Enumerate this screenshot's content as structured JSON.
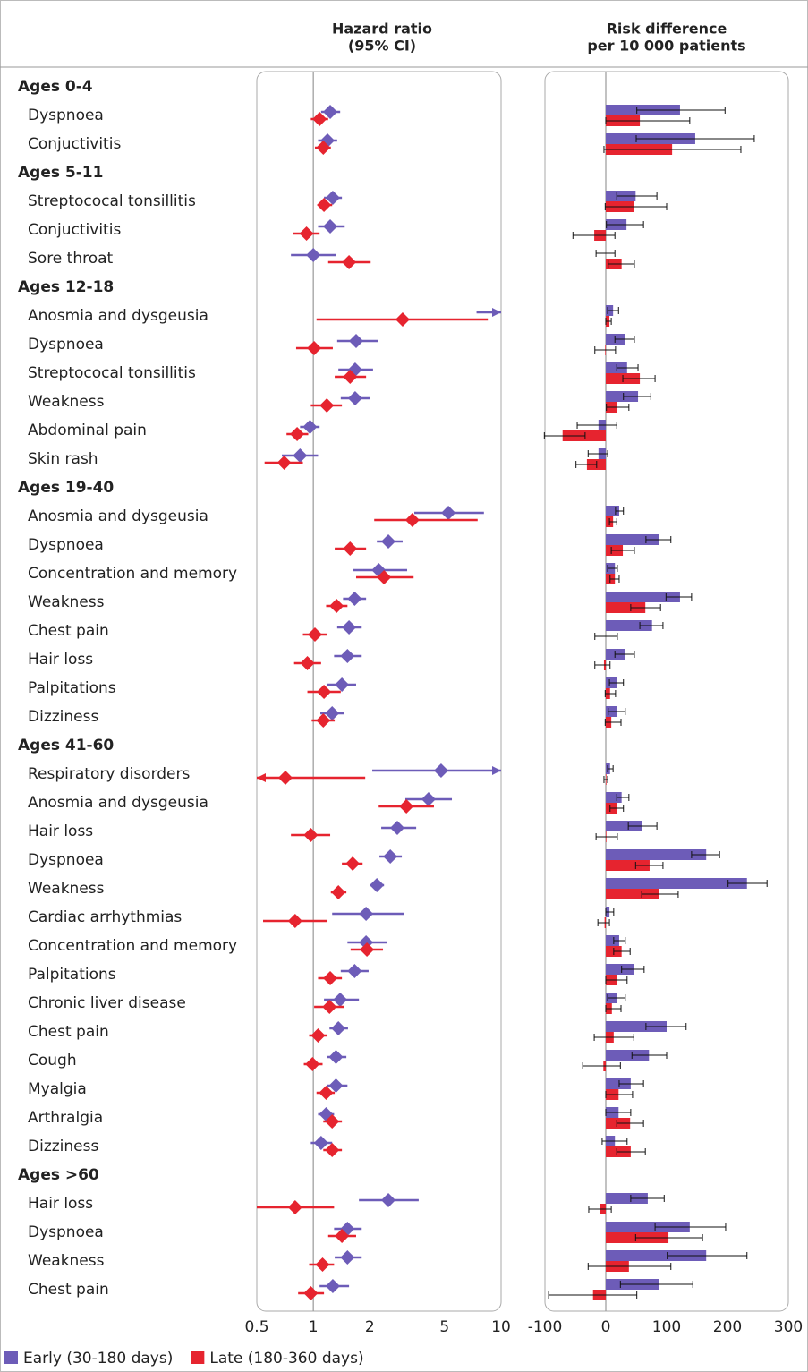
{
  "hazard_ratio": {
    "title": [
      "Hazard ratio",
      "(95% CI)"
    ],
    "scale": "log",
    "xlim": [
      0.5,
      10
    ],
    "xticks": [
      0.5,
      1,
      2,
      5,
      10
    ],
    "reference": 1
  },
  "risk_difference": {
    "title": [
      "Risk difference",
      "per 10 000 patients"
    ],
    "xlim": [
      -100,
      300
    ],
    "xticks": [
      -100,
      0,
      100,
      200,
      300
    ],
    "reference": 0
  },
  "series": [
    {
      "name": "Early (30-180 days)",
      "color": "#6d5cb8"
    },
    {
      "name": "Late (180-360 days)",
      "color": "#e6242f"
    }
  ],
  "groups": [
    {
      "label": "Ages 0-4",
      "rows": [
        {
          "label": "Dyspnoea",
          "hr": [
            [
              1.23,
              1.1,
              1.39
            ],
            [
              1.08,
              0.97,
              1.2
            ]
          ],
          "rd": [
            [
              122,
              51,
              196
            ],
            [
              56,
              0,
              138
            ]
          ]
        },
        {
          "label": "Conjuctivitis",
          "hr": [
            [
              1.19,
              1.06,
              1.34
            ],
            [
              1.13,
              1.02,
              1.24
            ]
          ],
          "rd": [
            [
              147,
              50,
              244
            ],
            [
              109,
              -3,
              222
            ]
          ]
        }
      ]
    },
    {
      "label": "Ages 5-11",
      "rows": [
        {
          "label": "Streptococal tonsillitis",
          "hr": [
            [
              1.27,
              1.14,
              1.42
            ],
            [
              1.14,
              1.06,
              1.26
            ]
          ],
          "rd": [
            [
              49,
              18,
              84
            ],
            [
              47,
              -1,
              100
            ]
          ]
        },
        {
          "label": "Conjuctivitis",
          "hr": [
            [
              1.23,
              1.06,
              1.47
            ],
            [
              0.92,
              0.78,
              1.08
            ]
          ],
          "rd": [
            [
              34,
              1,
              62
            ],
            [
              -19,
              -54,
              15
            ]
          ]
        },
        {
          "label": "Sore throat",
          "hr": [
            [
              1.0,
              0.76,
              1.32
            ],
            [
              1.55,
              1.2,
              2.02
            ]
          ],
          "rd": [
            [
              0,
              -16,
              15
            ],
            [
              26,
              4,
              47
            ]
          ]
        }
      ]
    },
    {
      "label": "Ages 12-18",
      "rows": [
        {
          "label": "Anosmia and dysgeusia",
          "hr": [
            [
              12,
              7.4,
              20
            ],
            [
              2.99,
              1.04,
              8.5
            ]
          ],
          "rd": [
            [
              12,
              3,
              21
            ],
            [
              6,
              0,
              9
            ]
          ]
        },
        {
          "label": "Dyspnoea",
          "hr": [
            [
              1.69,
              1.34,
              2.2
            ],
            [
              1.01,
              0.81,
              1.27
            ]
          ],
          "rd": [
            [
              32,
              15,
              47
            ],
            [
              -1,
              -18,
              16
            ]
          ]
        },
        {
          "label": "Streptococal tonsillitis",
          "hr": [
            [
              1.67,
              1.36,
              2.08
            ],
            [
              1.57,
              1.3,
              1.91
            ]
          ],
          "rd": [
            [
              35,
              18,
              53
            ],
            [
              56,
              28,
              81
            ]
          ]
        },
        {
          "label": "Weakness",
          "hr": [
            [
              1.67,
              1.4,
              2.0
            ],
            [
              1.18,
              0.97,
              1.42
            ]
          ],
          "rd": [
            [
              53,
              29,
              74
            ],
            [
              18,
              1,
              38
            ]
          ]
        },
        {
          "label": "Abdominal pain",
          "hr": [
            [
              0.96,
              0.85,
              1.08
            ],
            [
              0.82,
              0.72,
              0.94
            ]
          ],
          "rd": [
            [
              -12,
              -47,
              18
            ],
            [
              -71,
              -101,
              -34
            ]
          ]
        },
        {
          "label": "Skin rash",
          "hr": [
            [
              0.85,
              0.68,
              1.06
            ],
            [
              0.7,
              0.55,
              0.88
            ]
          ],
          "rd": [
            [
              -12,
              -29,
              3
            ],
            [
              -31,
              -49,
              -15
            ]
          ]
        }
      ]
    },
    {
      "label": "Ages 19-40",
      "rows": [
        {
          "label": "Anosmia and dysgeusia",
          "hr": [
            [
              5.24,
              3.45,
              8.1
            ],
            [
              3.37,
              2.11,
              7.5
            ]
          ],
          "rd": [
            [
              22,
              16,
              29
            ],
            [
              12,
              6,
              18
            ]
          ]
        },
        {
          "label": "Dyspnoea",
          "hr": [
            [
              2.51,
              2.18,
              2.99
            ],
            [
              1.57,
              1.3,
              1.91
            ]
          ],
          "rd": [
            [
              87,
              66,
              107
            ],
            [
              28,
              9,
              47
            ]
          ]
        },
        {
          "label": "Concentration and memory",
          "hr": [
            [
              2.23,
              1.62,
              3.16
            ],
            [
              2.38,
              1.69,
              3.42
            ]
          ],
          "rd": [
            [
              15,
              3,
              19
            ],
            [
              15,
              7,
              22
            ]
          ]
        },
        {
          "label": "Weakness",
          "hr": [
            [
              1.66,
              1.44,
              1.91
            ],
            [
              1.33,
              1.17,
              1.52
            ]
          ],
          "rd": [
            [
              122,
              99,
              141
            ],
            [
              65,
              41,
              90
            ]
          ]
        },
        {
          "label": "Chest pain",
          "hr": [
            [
              1.55,
              1.34,
              1.81
            ],
            [
              1.02,
              0.88,
              1.18
            ]
          ],
          "rd": [
            [
              76,
              56,
              94
            ],
            [
              0,
              -18,
              19
            ]
          ]
        },
        {
          "label": "Hair loss",
          "hr": [
            [
              1.52,
              1.29,
              1.81
            ],
            [
              0.93,
              0.79,
              1.1
            ]
          ],
          "rd": [
            [
              32,
              15,
              47
            ],
            [
              -3,
              -18,
              7
            ]
          ]
        },
        {
          "label": "Palpitations",
          "hr": [
            [
              1.42,
              1.18,
              1.69
            ],
            [
              1.14,
              0.93,
              1.4
            ]
          ],
          "rd": [
            [
              18,
              6,
              29
            ],
            [
              7,
              -1,
              16
            ]
          ]
        },
        {
          "label": "Dizziness",
          "hr": [
            [
              1.26,
              1.09,
              1.45
            ],
            [
              1.13,
              0.98,
              1.3
            ]
          ],
          "rd": [
            [
              19,
              4,
              32
            ],
            [
              9,
              -1,
              25
            ]
          ]
        }
      ]
    },
    {
      "label": "Ages 41-60",
      "rows": [
        {
          "label": "Respiratory disorders",
          "hr": [
            [
              4.79,
              2.06,
              12
            ],
            [
              0.71,
              0.4,
              1.89
            ]
          ],
          "rd": [
            [
              7,
              3,
              12
            ],
            [
              1,
              -3,
              3
            ]
          ]
        },
        {
          "label": "Anosmia and dysgeusia",
          "hr": [
            [
              4.11,
              3.09,
              5.47
            ],
            [
              3.13,
              2.23,
              4.39
            ]
          ],
          "rd": [
            [
              26,
              18,
              38
            ],
            [
              19,
              7,
              29
            ]
          ]
        },
        {
          "label": "Hair loss",
          "hr": [
            [
              2.8,
              2.3,
              3.53
            ],
            [
              0.97,
              0.76,
              1.23
            ]
          ],
          "rd": [
            [
              59,
              37,
              84
            ],
            [
              1,
              -16,
              19
            ]
          ]
        },
        {
          "label": "Dyspnoea",
          "hr": [
            [
              2.57,
              2.25,
              2.96
            ],
            [
              1.62,
              1.42,
              1.83
            ]
          ],
          "rd": [
            [
              165,
              141,
              187
            ],
            [
              72,
              49,
              94
            ]
          ]
        },
        {
          "label": "Weakness",
          "hr": [
            [
              2.18,
              2.0,
              2.38
            ],
            [
              1.36,
              1.24,
              1.5
            ]
          ],
          "rd": [
            [
              232,
              201,
              265
            ],
            [
              88,
              59,
              119
            ]
          ]
        },
        {
          "label": "Cardiac arrhythmias",
          "hr": [
            [
              1.91,
              1.26,
              3.03
            ],
            [
              0.8,
              0.54,
              1.19
            ]
          ],
          "rd": [
            [
              6,
              0,
              13
            ],
            [
              -2,
              -13,
              6
            ]
          ]
        },
        {
          "label": "Concentration and memory",
          "hr": [
            [
              1.91,
              1.52,
              2.46
            ],
            [
              1.93,
              1.58,
              2.35
            ]
          ],
          "rd": [
            [
              22,
              13,
              32
            ],
            [
              26,
              13,
              40
            ]
          ]
        },
        {
          "label": "Palpitations",
          "hr": [
            [
              1.66,
              1.4,
              1.97
            ],
            [
              1.23,
              1.06,
              1.42
            ]
          ],
          "rd": [
            [
              47,
              26,
              63
            ],
            [
              18,
              0,
              35
            ]
          ]
        },
        {
          "label": "Chronic liver disease",
          "hr": [
            [
              1.39,
              1.14,
              1.75
            ],
            [
              1.22,
              1.01,
              1.45
            ]
          ],
          "rd": [
            [
              18,
              3,
              32
            ],
            [
              10,
              0,
              25
            ]
          ]
        },
        {
          "label": "Chest pain",
          "hr": [
            [
              1.36,
              1.22,
              1.53
            ],
            [
              1.06,
              0.95,
              1.19
            ]
          ],
          "rd": [
            [
              100,
              66,
              132
            ],
            [
              13,
              -19,
              46
            ]
          ]
        },
        {
          "label": "Cough",
          "hr": [
            [
              1.32,
              1.19,
              1.5
            ],
            [
              0.99,
              0.89,
              1.12
            ]
          ],
          "rd": [
            [
              71,
              43,
              100
            ],
            [
              -4,
              -38,
              24
            ]
          ]
        },
        {
          "label": "Myalgia",
          "hr": [
            [
              1.32,
              1.18,
              1.52
            ],
            [
              1.17,
              1.04,
              1.3
            ]
          ],
          "rd": [
            [
              41,
              22,
              62
            ],
            [
              21,
              0,
              44
            ]
          ]
        },
        {
          "label": "Arthralgia",
          "hr": [
            [
              1.17,
              1.06,
              1.29
            ],
            [
              1.26,
              1.13,
              1.42
            ]
          ],
          "rd": [
            [
              21,
              0,
              41
            ],
            [
              40,
              18,
              62
            ]
          ]
        },
        {
          "label": "Dizziness",
          "hr": [
            [
              1.1,
              0.97,
              1.26
            ],
            [
              1.26,
              1.13,
              1.42
            ]
          ],
          "rd": [
            [
              15,
              -6,
              35
            ],
            [
              41,
              18,
              65
            ]
          ]
        }
      ]
    },
    {
      "label": "Ages >60",
      "rows": [
        {
          "label": "Hair loss",
          "hr": [
            [
              2.51,
              1.75,
              3.64
            ],
            [
              0.8,
              0.5,
              1.29
            ]
          ],
          "rd": [
            [
              69,
              41,
              96
            ],
            [
              -10,
              -28,
              9
            ]
          ]
        },
        {
          "label": "Dyspnoea",
          "hr": [
            [
              1.52,
              1.29,
              1.81
            ],
            [
              1.42,
              1.2,
              1.69
            ]
          ],
          "rd": [
            [
              138,
              81,
              197
            ],
            [
              103,
              49,
              159
            ]
          ]
        },
        {
          "label": "Weakness",
          "hr": [
            [
              1.52,
              1.3,
              1.81
            ],
            [
              1.12,
              0.95,
              1.29
            ]
          ],
          "rd": [
            [
              165,
              101,
              232
            ],
            [
              38,
              -29,
              107
            ]
          ]
        },
        {
          "label": "Chest pain",
          "hr": [
            [
              1.27,
              1.08,
              1.55
            ],
            [
              0.97,
              0.83,
              1.14
            ]
          ],
          "rd": [
            [
              87,
              24,
              143
            ],
            [
              -21,
              -94,
              51
            ]
          ]
        }
      ]
    }
  ]
}
